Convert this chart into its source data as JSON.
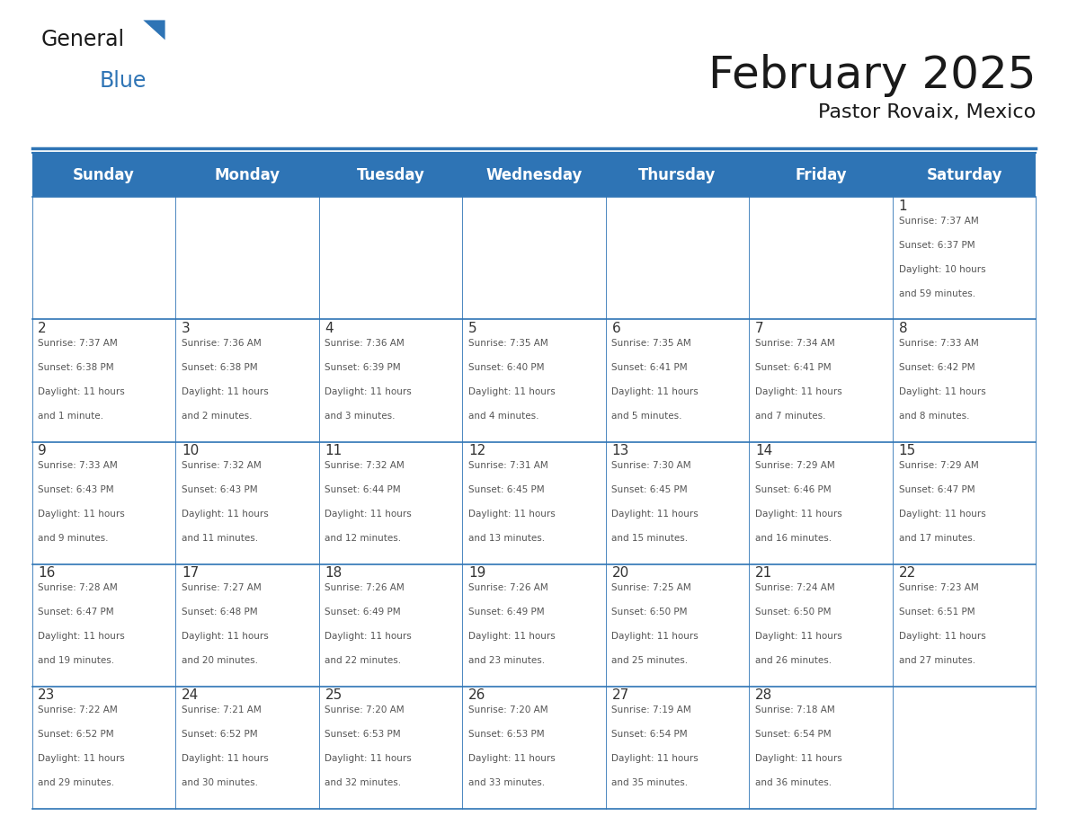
{
  "title": "February 2025",
  "subtitle": "Pastor Rovaix, Mexico",
  "header_bg": "#2E74B5",
  "header_text_color": "#FFFFFF",
  "day_names": [
    "Sunday",
    "Monday",
    "Tuesday",
    "Wednesday",
    "Thursday",
    "Friday",
    "Saturday"
  ],
  "grid_line_color": "#2E74B5",
  "day_number_color": "#333333",
  "info_text_color": "#555555",
  "calendar": [
    [
      null,
      null,
      null,
      null,
      null,
      null,
      1
    ],
    [
      2,
      3,
      4,
      5,
      6,
      7,
      8
    ],
    [
      9,
      10,
      11,
      12,
      13,
      14,
      15
    ],
    [
      16,
      17,
      18,
      19,
      20,
      21,
      22
    ],
    [
      23,
      24,
      25,
      26,
      27,
      28,
      null
    ]
  ],
  "sunrise_data": {
    "1": [
      "7:37 AM",
      "6:37 PM",
      "10 hours",
      "59 minutes"
    ],
    "2": [
      "7:37 AM",
      "6:38 PM",
      "11 hours",
      "1 minute"
    ],
    "3": [
      "7:36 AM",
      "6:38 PM",
      "11 hours",
      "2 minutes"
    ],
    "4": [
      "7:36 AM",
      "6:39 PM",
      "11 hours",
      "3 minutes"
    ],
    "5": [
      "7:35 AM",
      "6:40 PM",
      "11 hours",
      "4 minutes"
    ],
    "6": [
      "7:35 AM",
      "6:41 PM",
      "11 hours",
      "5 minutes"
    ],
    "7": [
      "7:34 AM",
      "6:41 PM",
      "11 hours",
      "7 minutes"
    ],
    "8": [
      "7:33 AM",
      "6:42 PM",
      "11 hours",
      "8 minutes"
    ],
    "9": [
      "7:33 AM",
      "6:43 PM",
      "11 hours",
      "9 minutes"
    ],
    "10": [
      "7:32 AM",
      "6:43 PM",
      "11 hours",
      "11 minutes"
    ],
    "11": [
      "7:32 AM",
      "6:44 PM",
      "11 hours",
      "12 minutes"
    ],
    "12": [
      "7:31 AM",
      "6:45 PM",
      "11 hours",
      "13 minutes"
    ],
    "13": [
      "7:30 AM",
      "6:45 PM",
      "11 hours",
      "15 minutes"
    ],
    "14": [
      "7:29 AM",
      "6:46 PM",
      "11 hours",
      "16 minutes"
    ],
    "15": [
      "7:29 AM",
      "6:47 PM",
      "11 hours",
      "17 minutes"
    ],
    "16": [
      "7:28 AM",
      "6:47 PM",
      "11 hours",
      "19 minutes"
    ],
    "17": [
      "7:27 AM",
      "6:48 PM",
      "11 hours",
      "20 minutes"
    ],
    "18": [
      "7:26 AM",
      "6:49 PM",
      "11 hours",
      "22 minutes"
    ],
    "19": [
      "7:26 AM",
      "6:49 PM",
      "11 hours",
      "23 minutes"
    ],
    "20": [
      "7:25 AM",
      "6:50 PM",
      "11 hours",
      "25 minutes"
    ],
    "21": [
      "7:24 AM",
      "6:50 PM",
      "11 hours",
      "26 minutes"
    ],
    "22": [
      "7:23 AM",
      "6:51 PM",
      "11 hours",
      "27 minutes"
    ],
    "23": [
      "7:22 AM",
      "6:52 PM",
      "11 hours",
      "29 minutes"
    ],
    "24": [
      "7:21 AM",
      "6:52 PM",
      "11 hours",
      "30 minutes"
    ],
    "25": [
      "7:20 AM",
      "6:53 PM",
      "11 hours",
      "32 minutes"
    ],
    "26": [
      "7:20 AM",
      "6:53 PM",
      "11 hours",
      "33 minutes"
    ],
    "27": [
      "7:19 AM",
      "6:54 PM",
      "11 hours",
      "35 minutes"
    ],
    "28": [
      "7:18 AM",
      "6:54 PM",
      "11 hours",
      "36 minutes"
    ]
  }
}
